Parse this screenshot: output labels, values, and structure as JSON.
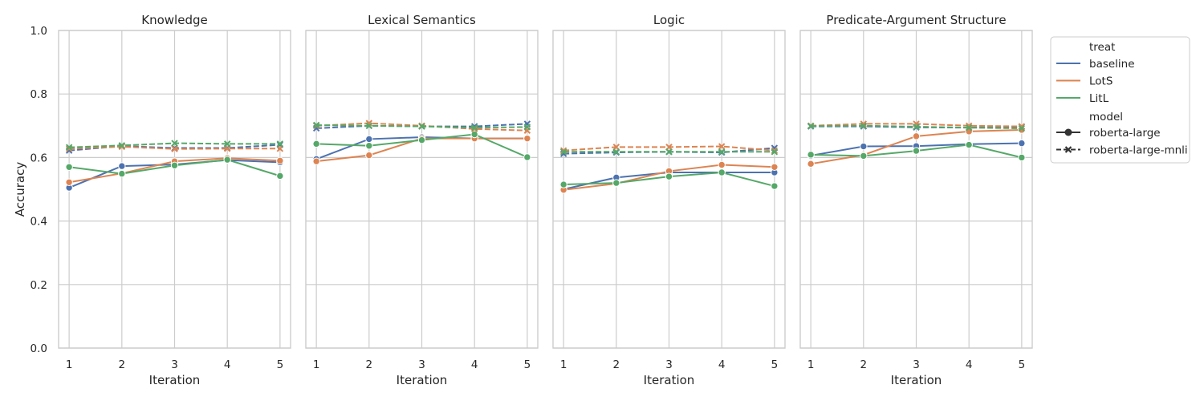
{
  "chart_data": {
    "type": "line",
    "ylabel": "Accuracy",
    "xlabel": "Iteration",
    "ylim": [
      0.0,
      1.0
    ],
    "xlim": [
      0.8,
      5.2
    ],
    "x": [
      1,
      2,
      3,
      4,
      5
    ],
    "x_ticks": [
      "1",
      "2",
      "3",
      "4",
      "5"
    ],
    "y_ticks": [
      "0.0",
      "0.2",
      "0.4",
      "0.6",
      "0.8",
      "1.0"
    ],
    "grid": true,
    "legend_position": "right-outside",
    "legend": {
      "hue_title": "treat",
      "hue_entries": [
        {
          "key": "baseline",
          "label": "baseline",
          "color": "#4c72b0"
        },
        {
          "key": "LotS",
          "label": "LotS",
          "color": "#dd8452"
        },
        {
          "key": "LitL",
          "label": "LitL",
          "color": "#55a868"
        }
      ],
      "style_title": "model",
      "style_entries": [
        {
          "key": "roberta-large",
          "label": "roberta-large",
          "dash": "solid",
          "marker": "circle"
        },
        {
          "key": "roberta-large-mnli",
          "label": "roberta-large-mnli",
          "dash": "dashed",
          "marker": "x"
        }
      ]
    },
    "panels": [
      {
        "title": "Knowledge",
        "series": [
          {
            "treat": "baseline",
            "model": "roberta-large",
            "values": [
              0.505,
              0.573,
              0.578,
              0.592,
              0.585
            ]
          },
          {
            "treat": "LotS",
            "model": "roberta-large",
            "values": [
              0.522,
              0.55,
              0.588,
              0.598,
              0.59
            ]
          },
          {
            "treat": "LitL",
            "model": "roberta-large",
            "values": [
              0.57,
              0.549,
              0.575,
              0.593,
              0.542
            ]
          },
          {
            "treat": "baseline",
            "model": "roberta-large-mnli",
            "values": [
              0.622,
              0.636,
              0.63,
              0.63,
              0.64
            ]
          },
          {
            "treat": "LotS",
            "model": "roberta-large-mnli",
            "values": [
              0.628,
              0.634,
              0.627,
              0.628,
              0.628
            ]
          },
          {
            "treat": "LitL",
            "model": "roberta-large-mnli",
            "values": [
              0.632,
              0.638,
              0.645,
              0.643,
              0.643
            ]
          }
        ]
      },
      {
        "title": "Lexical Semantics",
        "series": [
          {
            "treat": "baseline",
            "model": "roberta-large",
            "values": [
              0.595,
              0.658,
              0.664,
              0.66,
              0.66
            ]
          },
          {
            "treat": "LotS",
            "model": "roberta-large",
            "values": [
              0.588,
              0.607,
              0.66,
              0.66,
              0.66
            ]
          },
          {
            "treat": "LitL",
            "model": "roberta-large",
            "values": [
              0.643,
              0.637,
              0.655,
              0.673,
              0.601
            ]
          },
          {
            "treat": "baseline",
            "model": "roberta-large-mnli",
            "values": [
              0.692,
              0.7,
              0.698,
              0.698,
              0.706
            ]
          },
          {
            "treat": "LotS",
            "model": "roberta-large-mnli",
            "values": [
              0.7,
              0.708,
              0.7,
              0.69,
              0.685
            ]
          },
          {
            "treat": "LitL",
            "model": "roberta-large-mnli",
            "values": [
              0.702,
              0.7,
              0.698,
              0.694,
              0.696
            ]
          }
        ]
      },
      {
        "title": "Logic",
        "series": [
          {
            "treat": "baseline",
            "model": "roberta-large",
            "values": [
              0.5,
              0.537,
              0.553,
              0.553,
              0.553
            ]
          },
          {
            "treat": "LotS",
            "model": "roberta-large",
            "values": [
              0.498,
              0.518,
              0.557,
              0.577,
              0.57
            ]
          },
          {
            "treat": "LitL",
            "model": "roberta-large",
            "values": [
              0.515,
              0.52,
              0.54,
              0.553,
              0.51
            ]
          },
          {
            "treat": "baseline",
            "model": "roberta-large-mnli",
            "values": [
              0.612,
              0.616,
              0.618,
              0.616,
              0.63
            ]
          },
          {
            "treat": "LotS",
            "model": "roberta-large-mnli",
            "values": [
              0.622,
              0.633,
              0.633,
              0.635,
              0.622
            ]
          },
          {
            "treat": "LitL",
            "model": "roberta-large-mnli",
            "values": [
              0.618,
              0.618,
              0.618,
              0.618,
              0.618
            ]
          }
        ]
      },
      {
        "title": "Predicate-Argument Structure",
        "series": [
          {
            "treat": "baseline",
            "model": "roberta-large",
            "values": [
              0.606,
              0.635,
              0.636,
              0.642,
              0.645
            ]
          },
          {
            "treat": "LotS",
            "model": "roberta-large",
            "values": [
              0.58,
              0.608,
              0.667,
              0.682,
              0.687
            ]
          },
          {
            "treat": "LitL",
            "model": "roberta-large",
            "values": [
              0.609,
              0.605,
              0.621,
              0.64,
              0.6
            ]
          },
          {
            "treat": "baseline",
            "model": "roberta-large-mnli",
            "values": [
              0.698,
              0.698,
              0.695,
              0.694,
              0.697
            ]
          },
          {
            "treat": "LotS",
            "model": "roberta-large-mnli",
            "values": [
              0.7,
              0.706,
              0.706,
              0.7,
              0.698
            ]
          },
          {
            "treat": "LitL",
            "model": "roberta-large-mnli",
            "values": [
              0.699,
              0.7,
              0.697,
              0.694,
              0.692
            ]
          }
        ]
      }
    ]
  }
}
